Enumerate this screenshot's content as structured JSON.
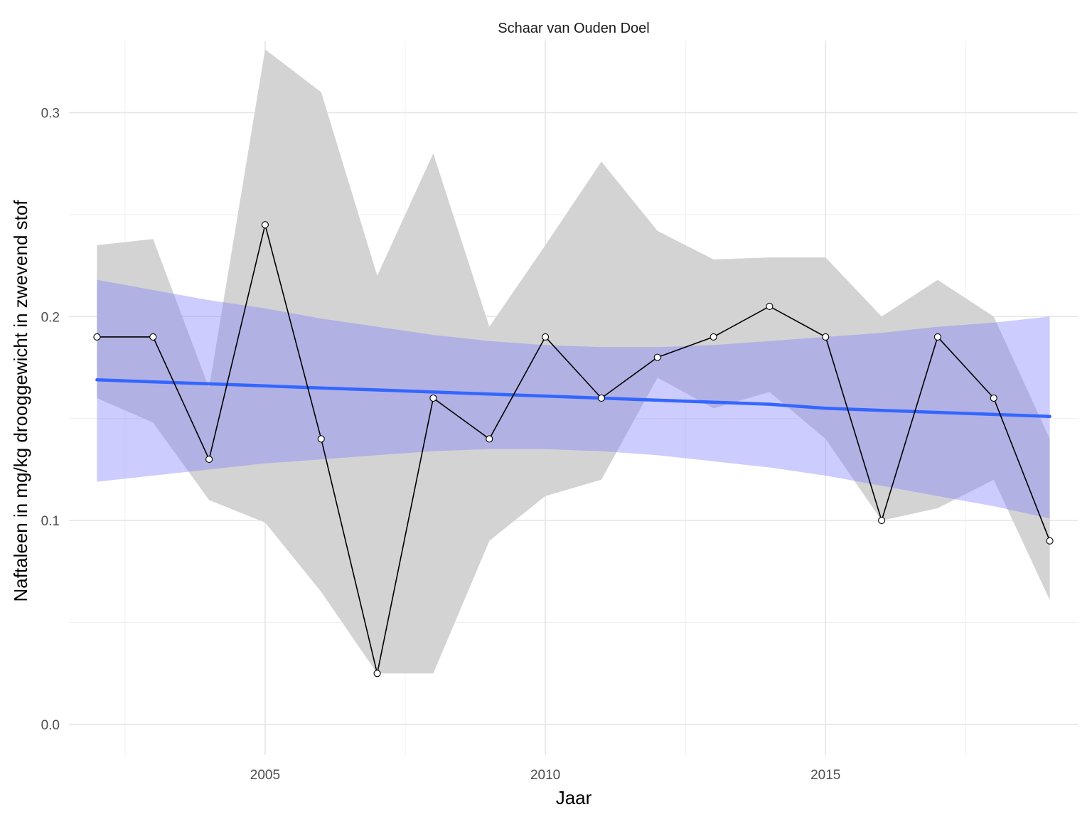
{
  "chart_data": {
    "type": "line",
    "title": "Schaar van Ouden Doel",
    "xlabel": "Jaar",
    "ylabel": "Naftaleen in mg/kg drooggewicht in zwevend stof",
    "xlim": [
      2001.5,
      2019.5
    ],
    "ylim": [
      -0.015,
      0.335
    ],
    "x_ticks": [
      2005,
      2010,
      2015
    ],
    "x_tick_labels": [
      "2005",
      "2010",
      "2015"
    ],
    "y_ticks": [
      0.0,
      0.1,
      0.2,
      0.3
    ],
    "y_tick_labels": [
      "0.0",
      "0.1",
      "0.2",
      "0.3"
    ],
    "grid": true,
    "series": [
      {
        "kind": "line-points",
        "x": [
          2002,
          2003,
          2004,
          2005,
          2006,
          2007,
          2008,
          2009,
          2010,
          2011,
          2012,
          2013,
          2014,
          2015,
          2016,
          2017,
          2018,
          2019
        ],
        "y": [
          0.19,
          0.19,
          0.13,
          0.245,
          0.14,
          0.025,
          0.16,
          0.14,
          0.19,
          0.16,
          0.18,
          0.19,
          0.205,
          0.19,
          0.1,
          0.19,
          0.16,
          0.09
        ],
        "color": "#000000"
      },
      {
        "kind": "range-band",
        "x": [
          2002,
          2003,
          2004,
          2005,
          2006,
          2007,
          2008,
          2009,
          2010,
          2011,
          2012,
          2013,
          2014,
          2015,
          2016,
          2017,
          2018,
          2019
        ],
        "ymin": [
          0.16,
          0.148,
          0.11,
          0.099,
          0.065,
          0.025,
          0.025,
          0.09,
          0.112,
          0.12,
          0.17,
          0.155,
          0.163,
          0.14,
          0.1,
          0.106,
          0.12,
          0.061
        ],
        "ymax": [
          0.235,
          0.238,
          0.165,
          0.331,
          0.31,
          0.22,
          0.28,
          0.195,
          0.235,
          0.276,
          0.242,
          0.228,
          0.229,
          0.229,
          0.2,
          0.218,
          0.2,
          0.14
        ],
        "color": "#d3d3d3"
      },
      {
        "kind": "trend-line",
        "x": [
          2002,
          2003,
          2004,
          2005,
          2006,
          2007,
          2008,
          2009,
          2010,
          2011,
          2012,
          2013,
          2014,
          2015,
          2016,
          2017,
          2018,
          2019
        ],
        "y": [
          0.169,
          0.168,
          0.167,
          0.166,
          0.165,
          0.164,
          0.163,
          0.162,
          0.161,
          0.16,
          0.159,
          0.158,
          0.157,
          0.155,
          0.154,
          0.153,
          0.152,
          0.151
        ],
        "color": "#3366ff"
      },
      {
        "kind": "confidence-band",
        "x": [
          2002,
          2003,
          2004,
          2005,
          2006,
          2007,
          2008,
          2009,
          2010,
          2011,
          2012,
          2013,
          2014,
          2015,
          2016,
          2017,
          2018,
          2019
        ],
        "ymin": [
          0.119,
          0.122,
          0.125,
          0.128,
          0.13,
          0.132,
          0.134,
          0.135,
          0.135,
          0.134,
          0.132,
          0.129,
          0.126,
          0.122,
          0.117,
          0.112,
          0.107,
          0.101
        ],
        "ymax": [
          0.218,
          0.213,
          0.208,
          0.204,
          0.199,
          0.195,
          0.191,
          0.188,
          0.186,
          0.185,
          0.185,
          0.186,
          0.188,
          0.19,
          0.192,
          0.195,
          0.197,
          0.2
        ],
        "color": "#8080ff"
      }
    ]
  }
}
